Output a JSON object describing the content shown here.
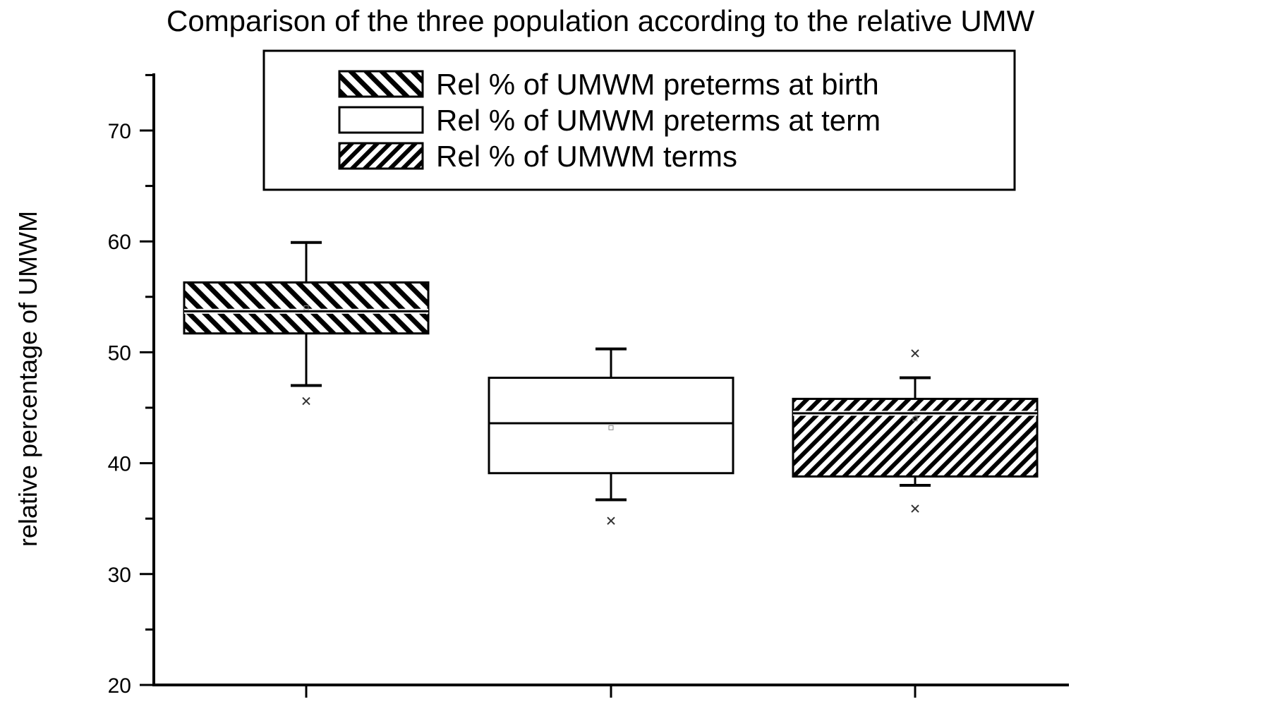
{
  "chart_data": {
    "type": "box",
    "title": "Comparison of the three population according to the relative UMW",
    "xlabel": "",
    "ylabel": "relative percentage of UMWM",
    "ylim": [
      20,
      75
    ],
    "yticks": [
      20,
      30,
      40,
      50,
      60,
      70
    ],
    "legend_position": "top-center",
    "series": [
      {
        "name": "Rel % of UMWM preterms at birth",
        "pattern": "hatch-backslash",
        "q1": 51.7,
        "median": 53.7,
        "q3": 56.3,
        "whisker_low": 47.0,
        "whisker_high": 59.9,
        "mean": 54.0,
        "outliers": [
          45.6
        ]
      },
      {
        "name": "Rel % of UMWM preterms at term",
        "pattern": "none",
        "q1": 39.1,
        "median": 43.6,
        "q3": 47.7,
        "whisker_low": 36.7,
        "whisker_high": 50.3,
        "mean": 43.2,
        "outliers": [
          34.8
        ]
      },
      {
        "name": "Rel % of UMWM terms",
        "pattern": "hatch-slash",
        "q1": 38.8,
        "median": 44.5,
        "q3": 45.8,
        "whisker_low": 38.0,
        "whisker_high": 47.7,
        "mean": 44.0,
        "outliers": [
          35.9,
          49.9
        ]
      }
    ]
  }
}
